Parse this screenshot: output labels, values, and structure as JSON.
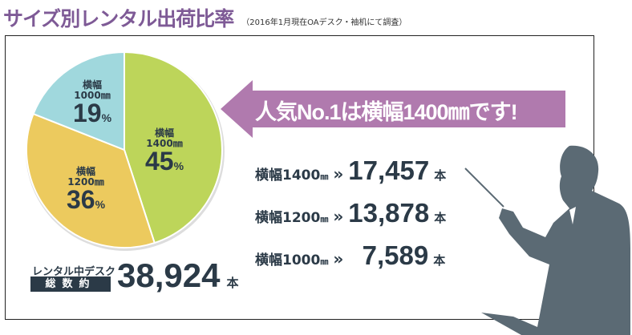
{
  "title": "サイズ別レンタル出荷比率",
  "note": "（2016年1月現在OAデスク・袖机にて調査）",
  "headline": {
    "text": "人気No.1は横幅1400㎜です!",
    "color": "#b07aae"
  },
  "rows": [
    {
      "label": "横幅1400",
      "unit_mm": "㎜",
      "arrow": "»",
      "value": "17,457",
      "unit": "本"
    },
    {
      "label": "横幅1200",
      "unit_mm": "㎜",
      "arrow": "»",
      "value": "13,878",
      "unit": "本"
    },
    {
      "label": "横幅1000",
      "unit_mm": "㎜",
      "arrow": "»",
      "value": "7,589",
      "unit": "本"
    }
  ],
  "total": {
    "caption": "レンタル中デスク",
    "badge": "総数約",
    "value": "38,924",
    "unit": "本"
  },
  "chart_data": {
    "type": "pie",
    "title": "サイズ別レンタル出荷比率",
    "slices": [
      {
        "name": "横幅",
        "size": "1400㎜",
        "value": 45,
        "label": "45",
        "pct": "%",
        "color": "#bdd55a"
      },
      {
        "name": "横幅",
        "size": "1200㎜",
        "value": 36,
        "label": "36",
        "pct": "%",
        "color": "#ecca5e"
      },
      {
        "name": "横幅",
        "size": "1000㎜",
        "value": 19,
        "label": "19",
        "pct": "%",
        "color": "#a0d8dd"
      }
    ]
  }
}
